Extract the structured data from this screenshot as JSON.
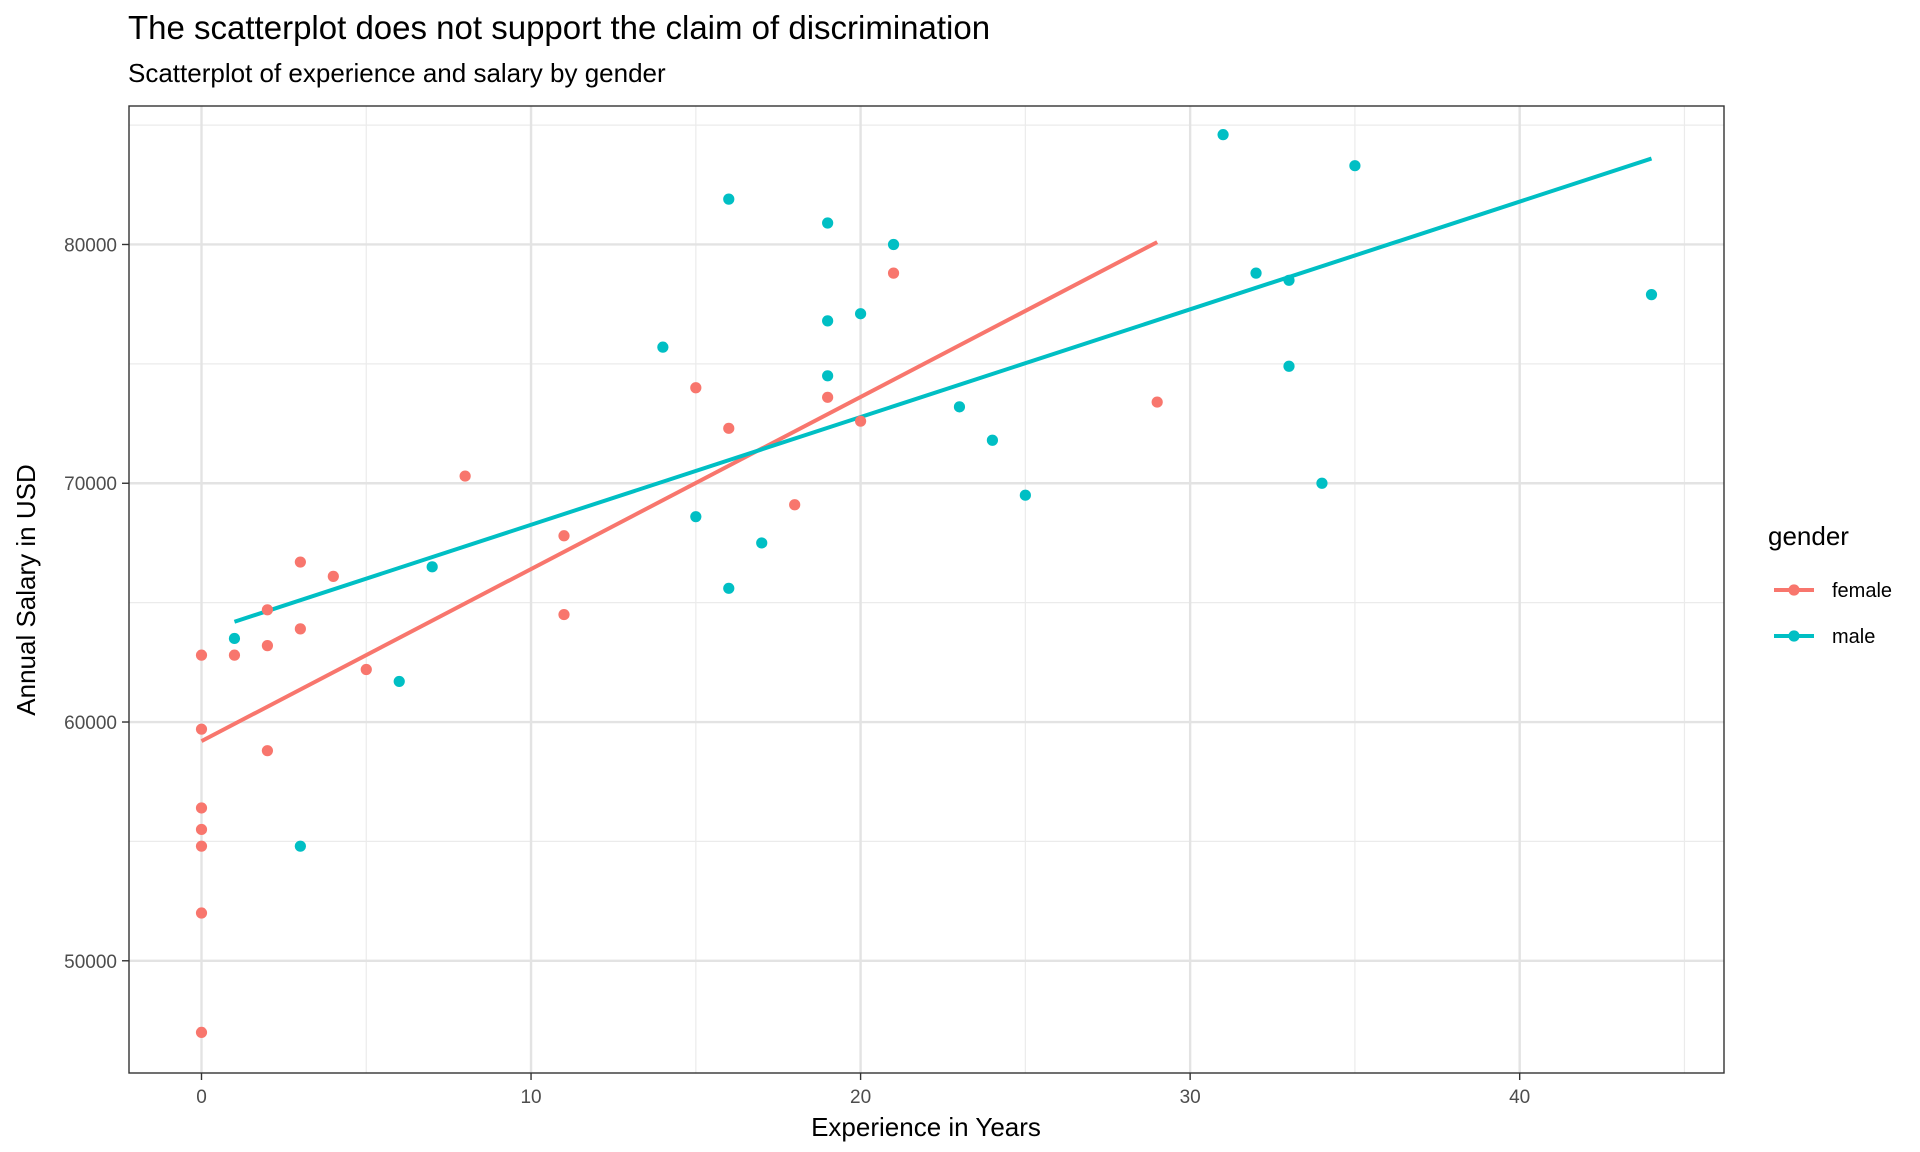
{
  "chart_data": {
    "type": "scatter",
    "title": "The scatterplot does not support the claim of discrimination",
    "subtitle": "Scatterplot of experience and salary by gender",
    "xlabel": "Experience in Years",
    "ylabel": "Annual Salary in USD",
    "xlim": [
      -2.2,
      46.2
    ],
    "ylim": [
      45300,
      85800
    ],
    "xticks": [
      0,
      10,
      20,
      30,
      40
    ],
    "yticks": [
      50000,
      60000,
      70000,
      80000
    ],
    "grid": true,
    "legend": {
      "title": "gender",
      "position": "right"
    },
    "series": [
      {
        "name": "female",
        "color": "#F8766D",
        "points": [
          [
            0,
            62800
          ],
          [
            0,
            59700
          ],
          [
            0,
            56400
          ],
          [
            0,
            55500
          ],
          [
            0,
            54800
          ],
          [
            0,
            52000
          ],
          [
            0,
            47000
          ],
          [
            1,
            62800
          ],
          [
            2,
            64700
          ],
          [
            2,
            63200
          ],
          [
            2,
            58800
          ],
          [
            3,
            66700
          ],
          [
            3,
            63900
          ],
          [
            4,
            66100
          ],
          [
            5,
            62200
          ],
          [
            8,
            70300
          ],
          [
            11,
            67800
          ],
          [
            11,
            64500
          ],
          [
            15,
            74000
          ],
          [
            16,
            72300
          ],
          [
            18,
            69100
          ],
          [
            19,
            73600
          ],
          [
            20,
            72600
          ],
          [
            21,
            78800
          ],
          [
            29,
            73400
          ]
        ],
        "fit": [
          [
            0,
            59200
          ],
          [
            29,
            80100
          ]
        ]
      },
      {
        "name": "male",
        "color": "#00BFC4",
        "points": [
          [
            1,
            63500
          ],
          [
            3,
            54800
          ],
          [
            6,
            61700
          ],
          [
            7,
            66500
          ],
          [
            14,
            75700
          ],
          [
            15,
            68600
          ],
          [
            16,
            81900
          ],
          [
            16,
            65600
          ],
          [
            17,
            67500
          ],
          [
            19,
            80900
          ],
          [
            19,
            76800
          ],
          [
            19,
            74500
          ],
          [
            20,
            77100
          ],
          [
            21,
            80000
          ],
          [
            23,
            73200
          ],
          [
            24,
            71800
          ],
          [
            25,
            69500
          ],
          [
            31,
            84600
          ],
          [
            32,
            78800
          ],
          [
            33,
            78500
          ],
          [
            33,
            74900
          ],
          [
            34,
            70000
          ],
          [
            35,
            83300
          ],
          [
            44,
            77900
          ]
        ],
        "fit": [
          [
            1,
            64200
          ],
          [
            44,
            83600
          ]
        ]
      }
    ]
  }
}
